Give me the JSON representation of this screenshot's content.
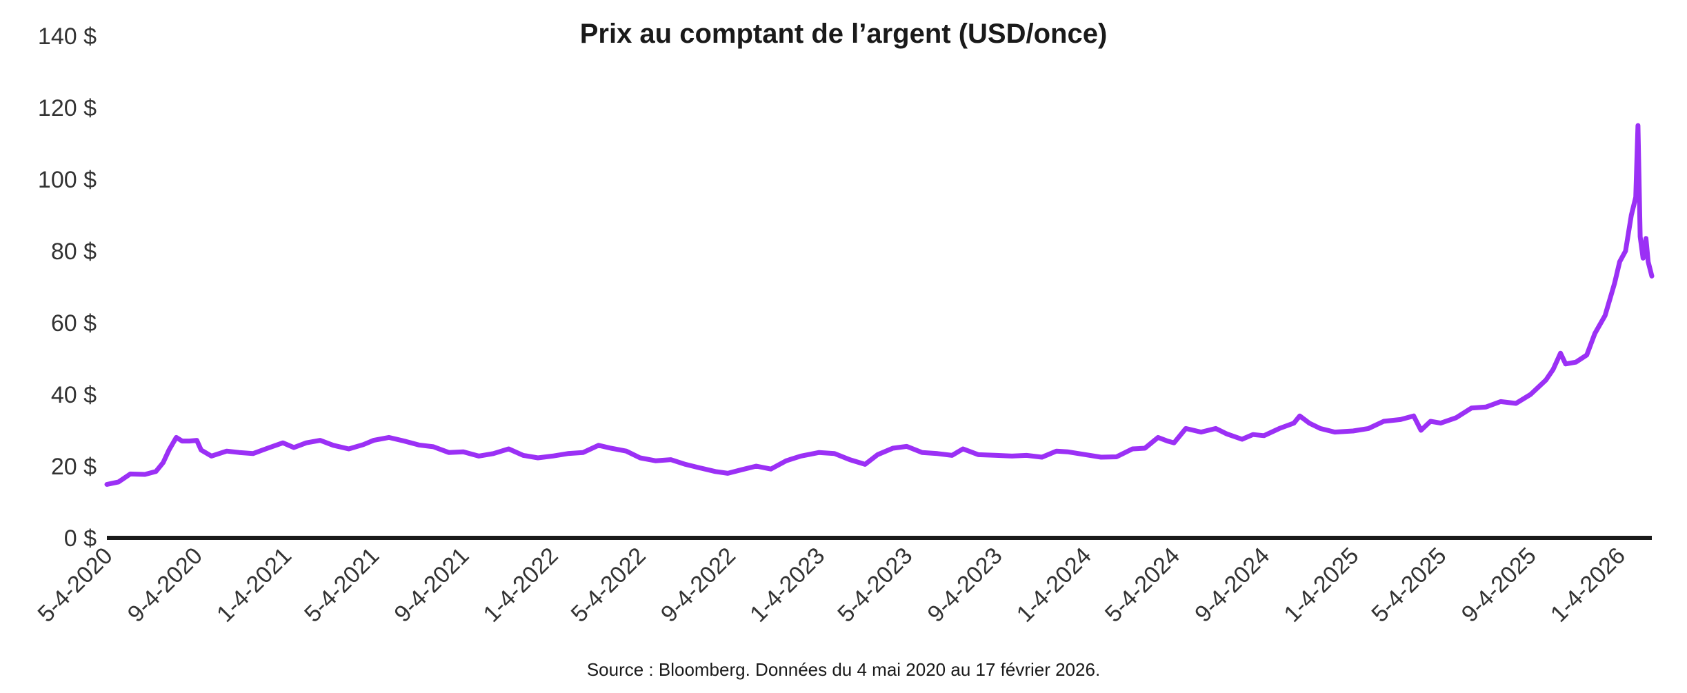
{
  "chart_data": {
    "type": "line",
    "title": "Prix au comptant de l’argent (USD/once)",
    "xlabel": "",
    "ylabel": "",
    "source": "Source : Bloomberg. Données du 4 mai 2020 au 17 février 2026.",
    "ylim": [
      0,
      140
    ],
    "y_ticks": [
      0,
      20,
      40,
      60,
      80,
      100,
      120,
      140
    ],
    "y_tick_labels": [
      "0 $",
      "20 $",
      "40 $",
      "60 $",
      "80 $",
      "100 $",
      "120 $",
      "140 $"
    ],
    "x_ticks": [
      "2020-05-04",
      "2020-09-04",
      "2021-01-04",
      "2021-05-04",
      "2021-09-04",
      "2022-01-04",
      "2022-05-04",
      "2022-09-04",
      "2023-01-04",
      "2023-05-04",
      "2023-09-04",
      "2024-01-04",
      "2024-05-04",
      "2024-09-04",
      "2025-01-04",
      "2025-05-04",
      "2025-09-04",
      "2026-01-04"
    ],
    "x_tick_labels": [
      "5-4-2020",
      "9-4-2020",
      "1-4-2021",
      "5-4-2021",
      "9-4-2021",
      "1-4-2022",
      "5-4-2022",
      "9-4-2022",
      "1-4-2023",
      "5-4-2023",
      "9-4-2023",
      "1-4-2024",
      "5-4-2024",
      "9-4-2024",
      "1-4-2025",
      "5-4-2025",
      "9-4-2025",
      "1-4-2026"
    ],
    "xlim": [
      "2020-05-04",
      "2026-02-17"
    ],
    "grid": false,
    "legend": "none",
    "line_color": "#9B30F5",
    "axis_color": "#1a1a1a",
    "series": [
      {
        "x": [
          "2020-05-04",
          "2020-05-20",
          "2020-06-05",
          "2020-06-25",
          "2020-07-10",
          "2020-07-20",
          "2020-07-28",
          "2020-08-07",
          "2020-08-15",
          "2020-08-25",
          "2020-09-04",
          "2020-09-10",
          "2020-09-24",
          "2020-10-15",
          "2020-11-01",
          "2020-11-20",
          "2020-12-10",
          "2020-12-31",
          "2021-01-15",
          "2021-02-01",
          "2021-02-20",
          "2021-03-10",
          "2021-03-31",
          "2021-04-20",
          "2021-05-04",
          "2021-05-25",
          "2021-06-15",
          "2021-07-05",
          "2021-07-25",
          "2021-08-15",
          "2021-09-04",
          "2021-09-25",
          "2021-10-15",
          "2021-11-05",
          "2021-11-25",
          "2021-12-15",
          "2022-01-04",
          "2022-01-25",
          "2022-02-15",
          "2022-03-08",
          "2022-03-25",
          "2022-04-15",
          "2022-05-04",
          "2022-05-25",
          "2022-06-15",
          "2022-07-05",
          "2022-07-25",
          "2022-08-15",
          "2022-09-01",
          "2022-09-20",
          "2022-10-10",
          "2022-10-30",
          "2022-11-20",
          "2022-12-10",
          "2023-01-04",
          "2023-01-25",
          "2023-02-15",
          "2023-03-08",
          "2023-03-25",
          "2023-04-15",
          "2023-05-04",
          "2023-05-25",
          "2023-06-15",
          "2023-07-05",
          "2023-07-20",
          "2023-08-10",
          "2023-09-04",
          "2023-09-25",
          "2023-10-15",
          "2023-11-05",
          "2023-11-25",
          "2023-12-10",
          "2024-01-04",
          "2024-01-25",
          "2024-02-15",
          "2024-03-08",
          "2024-03-25",
          "2024-04-12",
          "2024-04-25",
          "2024-05-04",
          "2024-05-20",
          "2024-06-10",
          "2024-06-30",
          "2024-07-15",
          "2024-08-05",
          "2024-08-20",
          "2024-09-04",
          "2024-09-25",
          "2024-10-15",
          "2024-10-23",
          "2024-11-05",
          "2024-11-20",
          "2024-12-10",
          "2025-01-04",
          "2025-01-25",
          "2025-02-15",
          "2025-03-10",
          "2025-03-28",
          "2025-04-07",
          "2025-04-20",
          "2025-05-04",
          "2025-05-25",
          "2025-06-15",
          "2025-07-05",
          "2025-07-25",
          "2025-08-15",
          "2025-09-04",
          "2025-09-25",
          "2025-10-05",
          "2025-10-15",
          "2025-10-22",
          "2025-11-05",
          "2025-11-20",
          "2025-12-01",
          "2025-12-15",
          "2025-12-28",
          "2026-01-04",
          "2026-01-12",
          "2026-01-20",
          "2026-01-26",
          "2026-01-29",
          "2026-02-01",
          "2026-02-05",
          "2026-02-09",
          "2026-02-12",
          "2026-02-17"
        ],
        "values": [
          14.9,
          15.6,
          17.8,
          17.7,
          18.5,
          21.0,
          24.5,
          28.0,
          27.0,
          27.0,
          27.2,
          24.5,
          22.8,
          24.2,
          23.8,
          23.5,
          25.0,
          26.5,
          25.2,
          26.5,
          27.2,
          25.8,
          24.8,
          26.0,
          27.2,
          28.0,
          27.0,
          25.9,
          25.4,
          23.8,
          24.0,
          22.8,
          23.5,
          24.8,
          23.0,
          22.3,
          22.8,
          23.5,
          23.8,
          25.8,
          25.0,
          24.2,
          22.3,
          21.5,
          21.8,
          20.5,
          19.5,
          18.5,
          18.0,
          19.0,
          20.0,
          19.2,
          21.5,
          22.8,
          23.8,
          23.5,
          21.8,
          20.5,
          23.2,
          25.0,
          25.5,
          23.8,
          23.5,
          23.0,
          24.8,
          23.2,
          23.0,
          22.8,
          23.0,
          22.5,
          24.2,
          24.0,
          23.2,
          22.5,
          22.6,
          24.8,
          25.0,
          28.0,
          27.0,
          26.5,
          30.5,
          29.5,
          30.5,
          29.0,
          27.5,
          28.8,
          28.5,
          30.5,
          32.0,
          34.0,
          32.0,
          30.5,
          29.5,
          29.8,
          30.5,
          32.5,
          33.0,
          34.0,
          30.0,
          32.5,
          32.0,
          33.5,
          36.2,
          36.5,
          38.0,
          37.5,
          40.0,
          44.0,
          47.0,
          51.5,
          48.5,
          49.0,
          51.0,
          57.0,
          62.0,
          71.0,
          77.0,
          80.0,
          90.0,
          95.0,
          115.0,
          84.0,
          78.0,
          83.5,
          77.0,
          73.0
        ]
      }
    ]
  }
}
